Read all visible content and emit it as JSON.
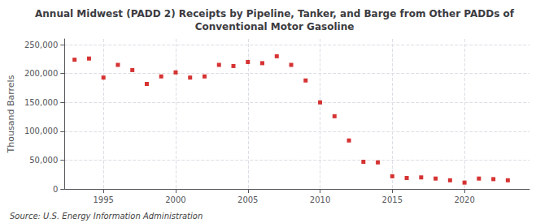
{
  "chart_data": {
    "type": "scatter",
    "title": "Annual Midwest (PADD 2) Receipts by Pipeline, Tanker, and Barge from Other PADDs of\nConventional Motor Gasoline",
    "ylabel": "Thousand Barrels",
    "annotations": [
      "Source: U.S. Energy Information Administration"
    ],
    "x": [
      1993,
      1994,
      1995,
      1996,
      1997,
      1998,
      1999,
      2000,
      2001,
      2002,
      2003,
      2004,
      2005,
      2006,
      2007,
      2008,
      2009,
      2010,
      2011,
      2012,
      2013,
      2014,
      2015,
      2016,
      2017,
      2018,
      2019,
      2020,
      2021,
      2022,
      2023
    ],
    "values": [
      224000,
      226000,
      193000,
      215000,
      206000,
      182000,
      195000,
      202000,
      193000,
      195000,
      215000,
      213000,
      220000,
      218000,
      230000,
      215000,
      188000,
      150000,
      126000,
      84000,
      47000,
      46000,
      22000,
      19000,
      20000,
      18000,
      15000,
      11000,
      18000,
      17000,
      15000
    ],
    "color": "#cc0000",
    "marker": "square",
    "xlim": [
      1992.3,
      2024.5
    ],
    "xticks": [
      1995,
      2000,
      2005,
      2010,
      2015,
      2020
    ],
    "ylim": [
      0,
      260000
    ],
    "yticks": [
      0,
      {
        "value": 50000,
        "label": "50,000"
      },
      {
        "value": 100000,
        "label": "100,000"
      },
      {
        "value": 150000,
        "label": "150,000"
      },
      {
        "value": 200000,
        "label": "200,000"
      },
      {
        "value": 250000,
        "label": "250,000"
      }
    ],
    "grid": true
  }
}
